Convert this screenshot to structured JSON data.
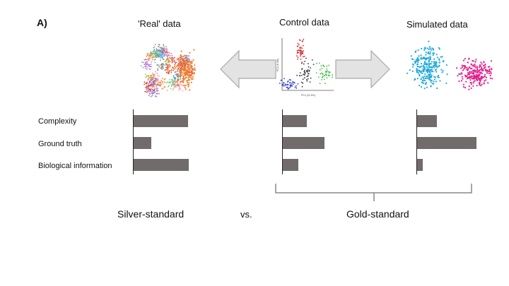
{
  "panel_label": "A)",
  "datasets": [
    {
      "id": "real",
      "title": "'Real' data",
      "scores": {
        "complexity": 0.92,
        "ground_truth": 0.3,
        "biological_information": 0.93
      }
    },
    {
      "id": "control",
      "title": "Control data",
      "scores": {
        "complexity": 0.4,
        "ground_truth": 0.7,
        "biological_information": 0.26
      }
    },
    {
      "id": "simulated",
      "title": "Simulated data",
      "scores": {
        "complexity": 0.33,
        "ground_truth": 1.0,
        "biological_information": 0.09
      }
    }
  ],
  "row_labels": {
    "complexity": "Complexity",
    "ground_truth": "Ground truth",
    "biological_information": "Biological information"
  },
  "bottom": {
    "silver": "Silver-standard",
    "vs": "vs.",
    "gold": "Gold-standard"
  },
  "colors": {
    "bar": "#716c6b",
    "arrow_fill": "#e3e3e3",
    "arrow_stroke": "#a9a9a9",
    "sim_cluster_a": "#1fa7dc",
    "sim_cluster_b": "#e0208c",
    "control_red": "#d02a2a",
    "control_green": "#3dbb3d",
    "control_blue": "#2a3bd0",
    "control_black": "#333333"
  },
  "control_plot": {
    "xlabel": "PC1 (11.5%)",
    "ylabel": "PC2 (6.4%)"
  }
}
